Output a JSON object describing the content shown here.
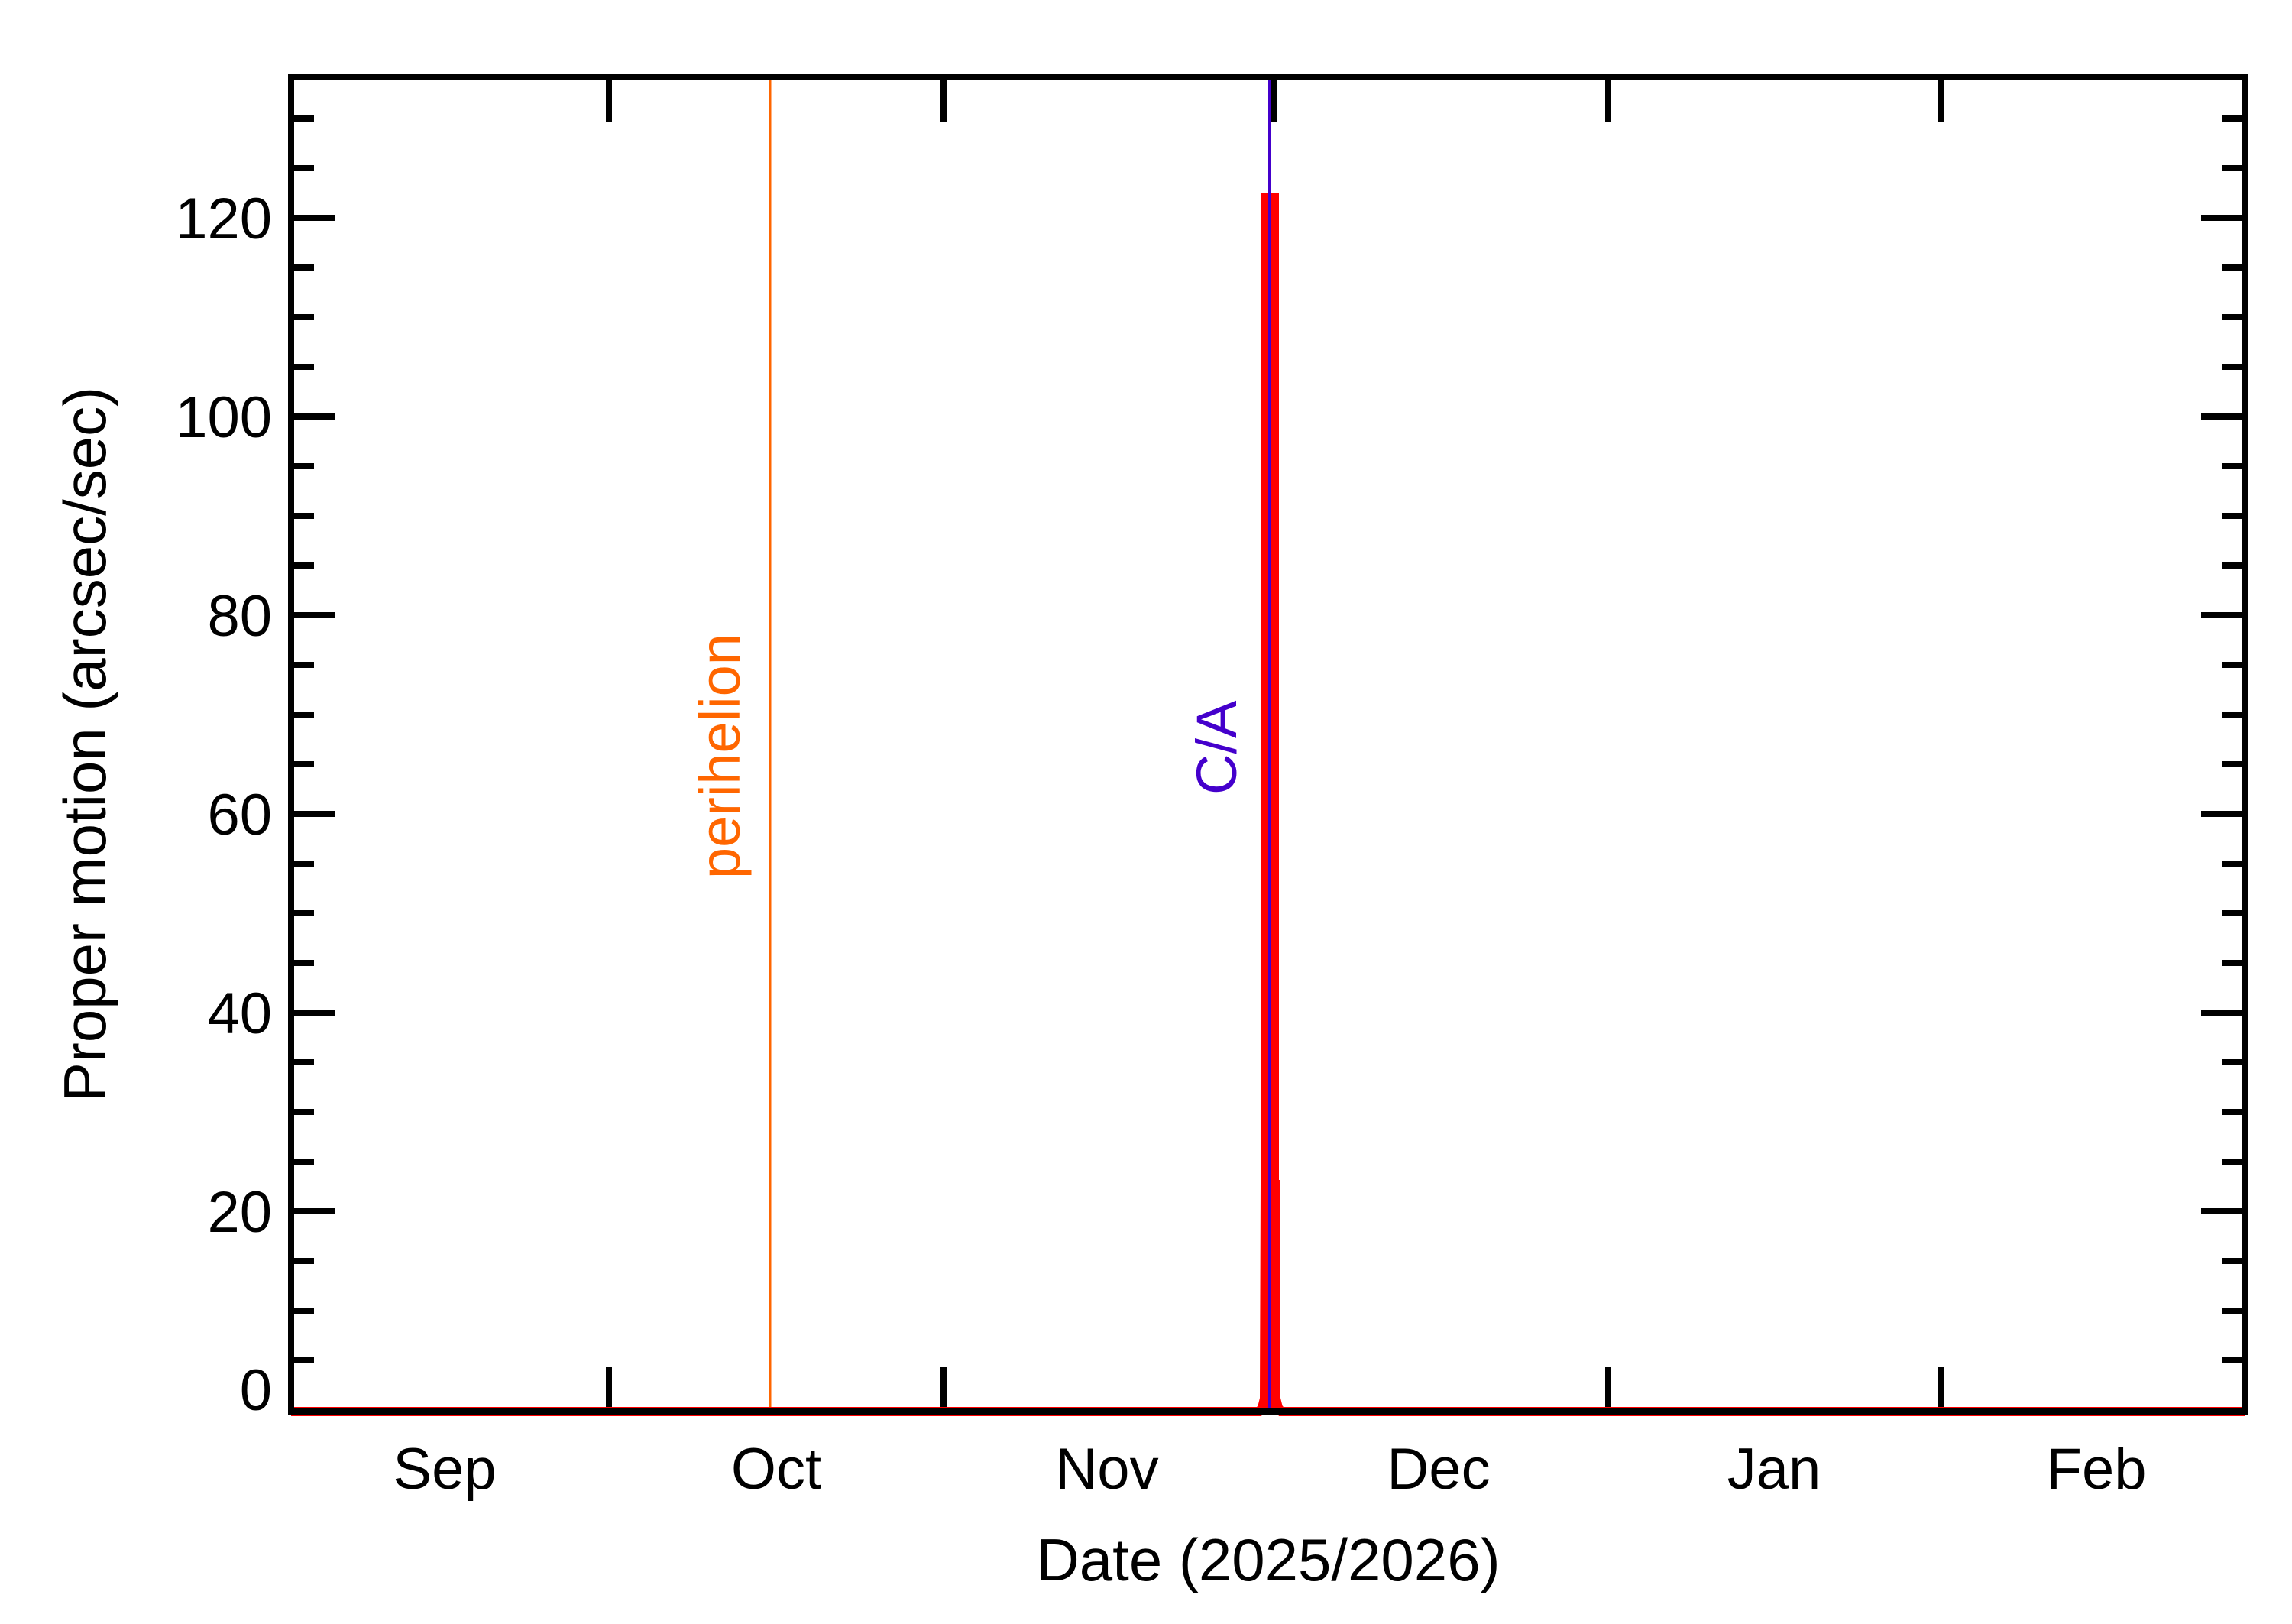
{
  "chart_data": {
    "type": "line",
    "title": "",
    "xlabel": "Date (2025/2026)",
    "ylabel": "Proper motion (arcsec/sec)",
    "x_tick_labels": [
      "Sep",
      "Oct",
      "Nov",
      "Dec",
      "Jan",
      "Feb"
    ],
    "y_tick_labels": [
      "0",
      "20",
      "40",
      "60",
      "80",
      "100",
      "120"
    ],
    "ylim": [
      0,
      134
    ],
    "xlim": [
      "2025-08-16",
      "2026-02-28"
    ],
    "grid": false,
    "legend": null,
    "series": [
      {
        "name": "Proper motion",
        "color": "#FF0000",
        "x": [
          "2025-08-16",
          "2025-11-16",
          "2025-11-17",
          "2025-11-17.3",
          "2025-11-17.5",
          "2025-11-17.7",
          "2025-11-18",
          "2025-11-19",
          "2026-02-28"
        ],
        "values": [
          0.0,
          0.1,
          1.0,
          22,
          122,
          22,
          1.0,
          0.1,
          0.0
        ]
      }
    ],
    "annotations": [
      {
        "label": "perihelion",
        "type": "vertical-line",
        "x": "2025-10-01",
        "color": "#FF6600"
      },
      {
        "label": "C/A",
        "type": "vertical-line",
        "x": "2025-11-17",
        "color": "#4400CC"
      }
    ]
  },
  "labels": {
    "xlabel": "Date (2025/2026)",
    "ylabel": "Proper motion (arcsec/sec)",
    "perihelion": "perihelion",
    "ca": "C/A",
    "months": [
      "Sep",
      "Oct",
      "Nov",
      "Dec",
      "Jan",
      "Feb"
    ],
    "yticks": [
      "0",
      "20",
      "40",
      "60",
      "80",
      "100",
      "120"
    ]
  },
  "colors": {
    "curve": "#FF0000",
    "perihelion": "#FF6600",
    "ca": "#4400CC",
    "axes": "#000000"
  }
}
